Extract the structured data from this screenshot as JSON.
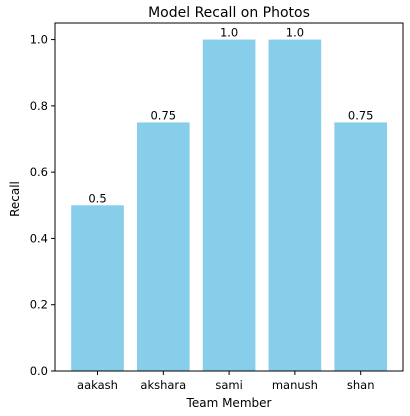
{
  "chart_data": {
    "type": "bar",
    "title": "Model Recall on Photos",
    "xlabel": "Team Member",
    "ylabel": "Recall",
    "categories": [
      "aakash",
      "akshara",
      "sami",
      "manush",
      "shan"
    ],
    "values": [
      0.5,
      0.75,
      1.0,
      1.0,
      0.75
    ],
    "data_labels": [
      "0.5",
      "0.75",
      "1.0",
      "1.0",
      "0.75"
    ],
    "ylim": [
      0,
      1.05
    ],
    "yticks": [
      0.0,
      0.2,
      0.4,
      0.6,
      0.8,
      1.0
    ],
    "ytick_labels": [
      "0.0",
      "0.2",
      "0.4",
      "0.6",
      "0.8",
      "1.0"
    ],
    "grid": false,
    "legend": "none",
    "bar_color": "#87CEEB"
  }
}
